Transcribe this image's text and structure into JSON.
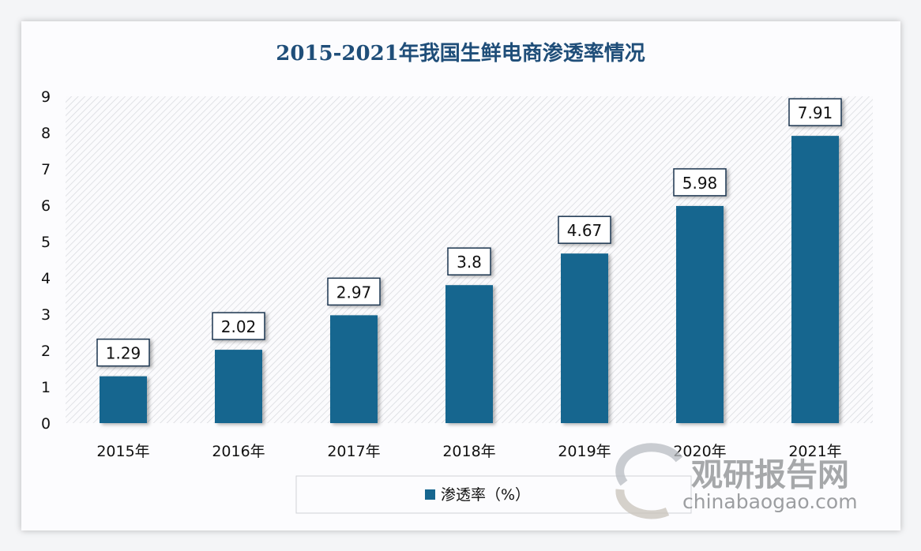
{
  "chart_data": {
    "type": "bar",
    "title": "2015-2021年我国生鲜电商渗透率情况",
    "categories": [
      "2015年",
      "2016年",
      "2017年",
      "2018年",
      "2019年",
      "2020年",
      "2021年"
    ],
    "series": [
      {
        "name": "渗透率（%）",
        "values": [
          1.29,
          2.02,
          2.97,
          3.8,
          4.67,
          5.98,
          7.91
        ]
      }
    ],
    "data_labels": [
      "1.29",
      "2.02",
      "2.97",
      "3.8",
      "4.67",
      "5.98",
      "7.91"
    ],
    "yticks": [
      "0",
      "1",
      "2",
      "3",
      "4",
      "5",
      "6",
      "7",
      "8",
      "9"
    ],
    "ylim": [
      0,
      9
    ],
    "xlabel": "",
    "ylabel": "",
    "grid": false,
    "legend": "bottom",
    "colors": {
      "bar": "#16668f",
      "title": "#1f4e79",
      "plot_hatch": "#d5d7dc"
    }
  },
  "watermark": {
    "cn": "观研报告网",
    "en": "chinabaogao.com"
  }
}
